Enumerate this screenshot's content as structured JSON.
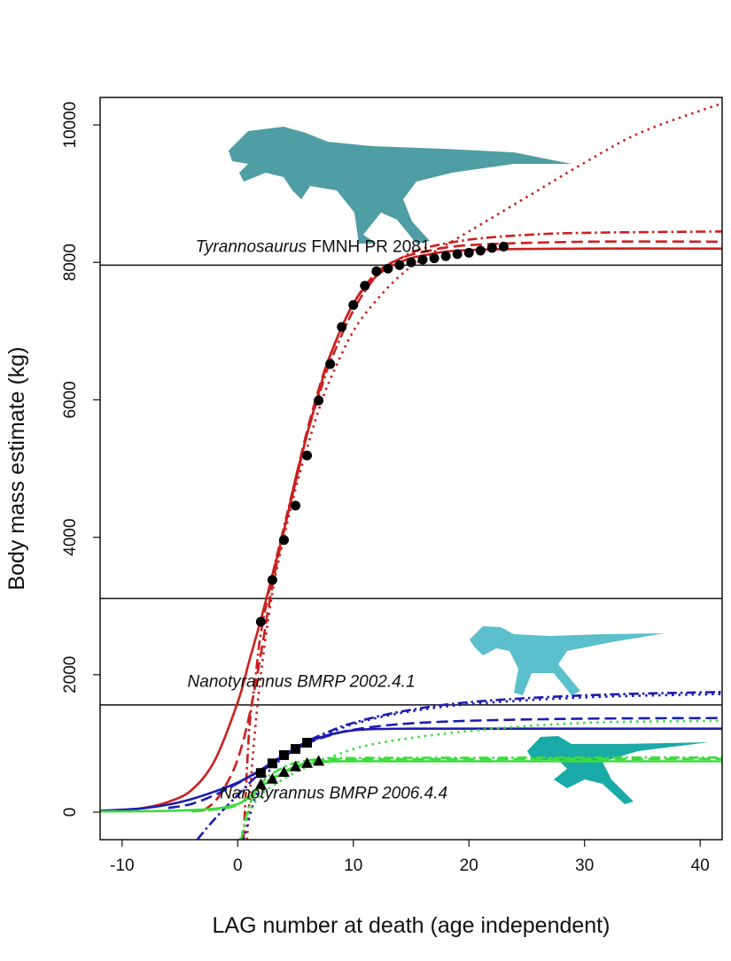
{
  "chart_data": {
    "type": "line",
    "title": "",
    "xlabel": "LAG number at death (age independent)",
    "ylabel": "Body mass estimate (kg)",
    "xlim": [
      -11.9,
      41.9
    ],
    "ylim": [
      -400,
      10400
    ],
    "xticks": [
      -10,
      0,
      10,
      20,
      30,
      40
    ],
    "yticks": [
      0,
      2000,
      4000,
      6000,
      8000,
      10000
    ],
    "grid": false,
    "reference_lines_y": [
      7960,
      3110,
      1560
    ],
    "annotations": [
      {
        "italic": "Tyrannosaurus",
        "text": " FMNH PR 2081",
        "at": [
          6.5,
          8150
        ]
      },
      {
        "italic": "Nanotyrannus BMRP 2002.4.1",
        "text": "",
        "at": [
          5.5,
          1820
        ]
      },
      {
        "italic": "Nanotyrannus BMRP 2006.4.4",
        "text": "",
        "at": [
          8.3,
          200
        ]
      }
    ],
    "silhouettes": [
      {
        "name": "tyrannosaurus-silhouette",
        "color": "#4e9ea3"
      },
      {
        "name": "nanotyrannus-2002-silhouette",
        "color": "#5bbfcc"
      },
      {
        "name": "nanotyrannus-2006-silhouette",
        "color": "#1aaaa8"
      }
    ],
    "points": [
      {
        "specimen": "Tyrannosaurus FMNH PR 2081",
        "marker": "circle",
        "x": [
          2,
          3,
          4,
          5,
          6,
          7,
          8,
          9,
          10,
          11,
          12,
          13,
          14,
          15,
          16,
          17,
          18,
          19,
          20,
          21,
          22,
          23
        ],
        "y": [
          2770,
          3380,
          3960,
          4460,
          5190,
          5990,
          6520,
          7060,
          7380,
          7660,
          7870,
          7910,
          7960,
          8000,
          8040,
          8060,
          8090,
          8120,
          8140,
          8170,
          8210,
          8230
        ]
      },
      {
        "specimen": "Nanotyrannus BMRP 2002.4.1",
        "marker": "square",
        "x": [
          2,
          3,
          4,
          5,
          6
        ],
        "y": [
          570,
          710,
          830,
          920,
          1010
        ]
      },
      {
        "specimen": "Nanotyrannus BMRP 2006.4.4",
        "marker": "triangle",
        "x": [
          2,
          3,
          4,
          5,
          6,
          7
        ],
        "y": [
          400,
          480,
          580,
          660,
          710,
          740
        ]
      }
    ],
    "series": [
      {
        "specimen": "Tyrannosaurus FMNH PR 2081",
        "color": "#cc1f1f",
        "style": "solid",
        "x": [
          -12,
          -10,
          -8,
          -6,
          -4,
          -2,
          0,
          1,
          2,
          3,
          4,
          5,
          6,
          7,
          8,
          10,
          12,
          14,
          16,
          20,
          30,
          42
        ],
        "y": [
          15,
          30,
          65,
          150,
          320,
          750,
          1600,
          2200,
          2800,
          3450,
          4100,
          4800,
          5500,
          6100,
          6650,
          7400,
          7800,
          8000,
          8100,
          8180,
          8200,
          8200
        ]
      },
      {
        "specimen": "Tyrannosaurus FMNH PR 2081",
        "color": "#cc1f1f",
        "style": "dashed",
        "x": [
          -3,
          -2,
          -1,
          0,
          1,
          2,
          3,
          4,
          5,
          6,
          7,
          8,
          10,
          12,
          14,
          16,
          20,
          30,
          42
        ],
        "y": [
          20,
          150,
          400,
          770,
          1400,
          2300,
          3300,
          4100,
          4850,
          5550,
          6150,
          6650,
          7400,
          7850,
          8050,
          8150,
          8250,
          8300,
          8300
        ]
      },
      {
        "specimen": "Tyrannosaurus FMNH PR 2081",
        "color": "#cc1f1f",
        "style": "dotdash",
        "x": [
          0.5,
          1,
          1.5,
          2,
          3,
          4,
          5,
          6,
          7,
          8,
          10,
          12,
          14,
          16,
          20,
          25,
          30,
          42
        ],
        "y": [
          -400,
          1200,
          1900,
          2600,
          3450,
          4150,
          4850,
          5500,
          6050,
          6550,
          7300,
          7800,
          8050,
          8200,
          8330,
          8400,
          8430,
          8450
        ]
      },
      {
        "specimen": "Tyrannosaurus FMNH PR 2081",
        "color": "#cc1f1f",
        "style": "dotted",
        "x": [
          0.8,
          1.3,
          2,
          3,
          4,
          5,
          6,
          7,
          8,
          10,
          12,
          14,
          16,
          20,
          25,
          30,
          35,
          42
        ],
        "y": [
          -400,
          800,
          2000,
          3200,
          4000,
          4700,
          5300,
          5850,
          6300,
          7000,
          7450,
          7800,
          8050,
          8450,
          8950,
          9450,
          9900,
          10320
        ]
      },
      {
        "specimen": "Nanotyrannus BMRP 2002.4.1",
        "color": "#1c1cb0",
        "style": "solid",
        "x": [
          -12,
          -10,
          -8,
          -6,
          -4,
          -2,
          0,
          1,
          2,
          3,
          4,
          5,
          6,
          7,
          8,
          10,
          12,
          15,
          20,
          42
        ],
        "y": [
          20,
          35,
          60,
          110,
          190,
          300,
          430,
          520,
          600,
          710,
          820,
          920,
          1010,
          1080,
          1130,
          1190,
          1210,
          1215,
          1215,
          1215
        ]
      },
      {
        "specimen": "Nanotyrannus BMRP 2002.4.1",
        "color": "#1c1cb0",
        "style": "dashed",
        "x": [
          -6,
          -4,
          -2,
          0,
          2,
          4,
          6,
          8,
          10,
          14,
          20,
          30,
          42
        ],
        "y": [
          60,
          120,
          250,
          420,
          620,
          830,
          1000,
          1120,
          1200,
          1280,
          1330,
          1360,
          1370
        ]
      },
      {
        "specimen": "Nanotyrannus BMRP 2002.4.1",
        "color": "#1c1cb0",
        "style": "dotdash",
        "x": [
          -3.5,
          -2,
          0,
          2,
          4,
          6,
          8,
          10,
          14,
          20,
          30,
          42
        ],
        "y": [
          -400,
          -100,
          250,
          580,
          830,
          1030,
          1180,
          1300,
          1460,
          1600,
          1700,
          1750
        ]
      },
      {
        "specimen": "Nanotyrannus BMRP 2002.4.1",
        "color": "#1c1cb0",
        "style": "dotted",
        "x": [
          0.5,
          1.5,
          2.5,
          4,
          6,
          8,
          10,
          14,
          20,
          30,
          42
        ],
        "y": [
          -400,
          200,
          550,
          800,
          1000,
          1150,
          1280,
          1440,
          1570,
          1670,
          1720
        ]
      },
      {
        "specimen": "Nanotyrannus BMRP 2006.4.4",
        "color": "#3ddc3d",
        "style": "solid",
        "x": [
          -12,
          -6,
          -2,
          0,
          1,
          2,
          3,
          4,
          5,
          6,
          7,
          8,
          10,
          42
        ],
        "y": [
          10,
          20,
          50,
          120,
          220,
          370,
          480,
          580,
          650,
          700,
          725,
          735,
          740,
          740
        ]
      },
      {
        "specimen": "Nanotyrannus BMRP 2006.4.4",
        "color": "#3ddc3d",
        "style": "dashed",
        "x": [
          -4,
          -2,
          0,
          2,
          4,
          6,
          8,
          12,
          42
        ],
        "y": [
          10,
          40,
          110,
          380,
          590,
          720,
          760,
          770,
          775
        ]
      },
      {
        "specimen": "Nanotyrannus BMRP 2006.4.4",
        "color": "#3ddc3d",
        "style": "dotdash",
        "x": [
          0.3,
          1,
          2,
          3,
          5,
          8,
          12,
          42
        ],
        "y": [
          -400,
          100,
          400,
          560,
          720,
          780,
          790,
          795
        ]
      },
      {
        "specimen": "Nanotyrannus BMRP 2006.4.4",
        "color": "#3ddc3d",
        "style": "dotted",
        "x": [
          0.2,
          1,
          2,
          3,
          5,
          8,
          12,
          20,
          30,
          42
        ],
        "y": [
          -400,
          0,
          250,
          380,
          580,
          800,
          1000,
          1180,
          1300,
          1330
        ]
      }
    ]
  }
}
